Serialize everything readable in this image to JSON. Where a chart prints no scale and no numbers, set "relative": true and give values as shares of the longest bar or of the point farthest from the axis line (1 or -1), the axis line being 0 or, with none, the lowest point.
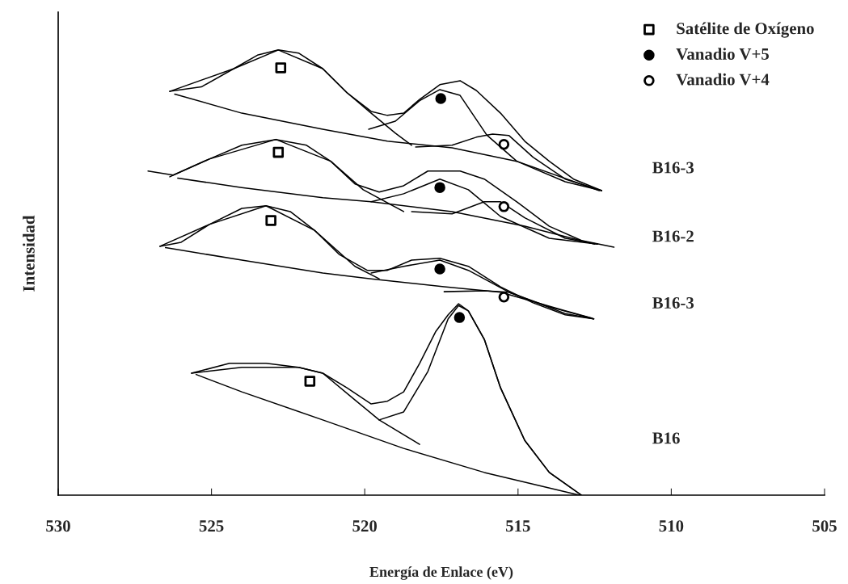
{
  "chart_data": {
    "type": "line",
    "relative": true,
    "xlabel": "Energía de Enlace (eV)",
    "ylabel": "Intensidad",
    "xlim": [
      530,
      505
    ],
    "xticks": [
      530,
      525,
      520,
      515,
      510,
      505
    ],
    "grid": false,
    "legend": "top right",
    "annotations": [
      "B16-3",
      "B16-2",
      "B16-3",
      "B16"
    ],
    "series": [
      {
        "color": "#000000",
        "x": [
          526.36,
          525.33,
          524.27,
          523.48,
          522.82,
          522.16,
          521.37,
          520.58,
          519.79,
          519.26,
          518.73,
          518.21,
          517.55,
          516.89,
          516.36,
          515.57,
          514.78,
          513.98,
          513.19,
          512.27
        ],
        "values": [
          0.907,
          0.917,
          0.958,
          0.989,
          1.0,
          0.993,
          0.958,
          0.904,
          0.862,
          0.853,
          0.858,
          0.889,
          0.922,
          0.931,
          0.909,
          0.858,
          0.795,
          0.75,
          0.71,
          0.684
        ]
      },
      {
        "color": "#000000",
        "x": [
          526.2,
          524.01,
          521.37,
          519.26,
          517.15,
          515.04,
          512.35
        ],
        "values": [
          0.901,
          0.858,
          0.822,
          0.795,
          0.78,
          0.75,
          0.684
        ]
      },
      {
        "color": "#000000",
        "x": [
          526.36,
          524.27,
          522.82,
          521.37,
          520.58,
          519.79,
          519.0,
          518.47
        ],
        "values": [
          0.907,
          0.958,
          1.0,
          0.958,
          0.904,
          0.858,
          0.813,
          0.786
        ]
      },
      {
        "color": "#000000",
        "x": [
          519.87,
          519.0,
          518.21,
          517.55,
          516.89,
          516.02,
          515.04,
          513.46,
          512.27
        ],
        "values": [
          0.822,
          0.84,
          0.886,
          0.911,
          0.898,
          0.809,
          0.75,
          0.704,
          0.684
        ]
      },
      {
        "color": "#000000",
        "x": [
          518.34,
          517.15,
          516.36,
          515.83,
          515.3,
          514.51,
          513.46,
          512.27
        ],
        "values": [
          0.782,
          0.786,
          0.804,
          0.811,
          0.808,
          0.759,
          0.71,
          0.684
        ]
      },
      {
        "color": "#000000",
        "x": [
          527.07,
          526.25,
          525.07,
          524.01,
          522.9,
          521.9,
          521.11,
          520.32,
          519.53,
          518.73,
          517.94,
          516.89,
          516.1,
          515.04,
          513.98,
          512.93,
          511.87
        ],
        "values": [
          0.728,
          0.719,
          0.755,
          0.786,
          0.799,
          0.786,
          0.75,
          0.699,
          0.681,
          0.695,
          0.728,
          0.728,
          0.71,
          0.659,
          0.604,
          0.572,
          0.557
        ]
      },
      {
        "color": "#000000",
        "x": [
          526.1,
          524.01,
          521.37,
          519.79,
          517.15,
          514.78,
          512.5
        ],
        "values": [
          0.712,
          0.691,
          0.668,
          0.659,
          0.637,
          0.604,
          0.564
        ]
      },
      {
        "color": "#000000",
        "x": [
          526.36,
          525.07,
          522.9,
          521.11,
          520.05,
          518.73
        ],
        "values": [
          0.715,
          0.755,
          0.799,
          0.75,
          0.686,
          0.637
        ]
      },
      {
        "color": "#000000",
        "x": [
          519.79,
          518.73,
          517.55,
          516.62,
          515.57,
          513.98,
          512.4
        ],
        "values": [
          0.659,
          0.677,
          0.71,
          0.686,
          0.626,
          0.577,
          0.564
        ]
      },
      {
        "color": "#000000",
        "x": [
          518.47,
          517.15,
          516.1,
          515.57,
          514.78,
          513.46,
          512.4
        ],
        "values": [
          0.637,
          0.632,
          0.659,
          0.659,
          0.623,
          0.577,
          0.564
        ]
      },
      {
        "color": "#000000",
        "x": [
          526.68,
          525.99,
          525.07,
          524.01,
          523.22,
          522.43,
          521.64,
          520.84,
          519.92,
          519.26,
          518.47,
          517.55,
          516.62,
          515.57,
          514.51,
          513.46,
          512.53
        ],
        "values": [
          0.559,
          0.568,
          0.608,
          0.644,
          0.65,
          0.637,
          0.595,
          0.541,
          0.505,
          0.505,
          0.528,
          0.532,
          0.514,
          0.468,
          0.432,
          0.405,
          0.396
        ]
      },
      {
        "color": "#000000",
        "x": [
          526.5,
          524.01,
          521.37,
          519.79,
          517.41,
          515.57,
          513.46,
          512.6
        ],
        "values": [
          0.556,
          0.528,
          0.499,
          0.486,
          0.468,
          0.456,
          0.414,
          0.398
        ]
      },
      {
        "color": "#000000",
        "x": [
          526.68,
          525.07,
          523.22,
          521.64,
          520.32,
          519.53
        ],
        "values": [
          0.559,
          0.608,
          0.65,
          0.595,
          0.514,
          0.486
        ]
      },
      {
        "color": "#000000",
        "x": [
          519.79,
          518.73,
          517.55,
          516.62,
          515.3,
          513.46,
          512.53
        ],
        "values": [
          0.499,
          0.514,
          0.528,
          0.505,
          0.456,
          0.408,
          0.396
        ]
      },
      {
        "color": "#000000",
        "x": [
          517.41,
          516.1,
          515.3,
          513.98,
          512.53
        ],
        "values": [
          0.457,
          0.459,
          0.456,
          0.423,
          0.396
        ]
      },
      {
        "color": "#000000",
        "x": [
          525.65,
          524.41,
          523.22,
          522.16,
          521.37,
          520.58,
          519.79,
          519.26,
          518.73,
          518.21,
          517.68,
          517.28,
          516.94,
          516.62,
          516.1,
          515.57,
          514.78,
          513.98,
          512.93
        ],
        "values": [
          0.274,
          0.296,
          0.296,
          0.287,
          0.274,
          0.241,
          0.205,
          0.211,
          0.232,
          0.296,
          0.368,
          0.405,
          0.43,
          0.414,
          0.35,
          0.241,
          0.123,
          0.051,
          0.0
        ]
      },
      {
        "color": "#000000",
        "x": [
          525.5,
          524.01,
          521.37,
          518.73,
          516.1,
          513.0
        ],
        "values": [
          0.271,
          0.232,
          0.169,
          0.105,
          0.051,
          0.0
        ]
      },
      {
        "color": "#000000",
        "x": [
          525.65,
          524.01,
          522.16,
          521.37,
          520.32,
          519.53,
          518.21
        ],
        "values": [
          0.274,
          0.287,
          0.287,
          0.274,
          0.214,
          0.169,
          0.114
        ]
      },
      {
        "color": "#000000",
        "x": [
          519.53,
          518.73,
          517.94,
          517.28,
          516.94,
          516.62,
          516.1,
          515.57,
          514.78,
          513.98,
          512.93
        ],
        "values": [
          0.169,
          0.187,
          0.278,
          0.396,
          0.426,
          0.414,
          0.35,
          0.241,
          0.123,
          0.051,
          0.0
        ]
      },
      {
        "type": "scatter",
        "name": "Satélite de Oxígeno",
        "marker": "square",
        "color": "#ffffff",
        "x": [
          522.74,
          522.82,
          523.06,
          521.79
        ],
        "values": [
          0.96,
          0.77,
          0.617,
          0.256
        ]
      },
      {
        "type": "scatter",
        "name": "Vanadio V+5",
        "marker": "circle",
        "color": "#000000",
        "x": [
          517.52,
          517.55,
          517.55,
          516.91
        ],
        "values": [
          0.891,
          0.691,
          0.508,
          0.399
        ]
      },
      {
        "type": "scatter",
        "name": "Vanadio V+4",
        "marker": "circle",
        "color": "#ffffff",
        "x": [
          515.46,
          515.46,
          515.46
        ],
        "values": [
          0.788,
          0.648,
          0.445
        ]
      }
    ]
  }
}
